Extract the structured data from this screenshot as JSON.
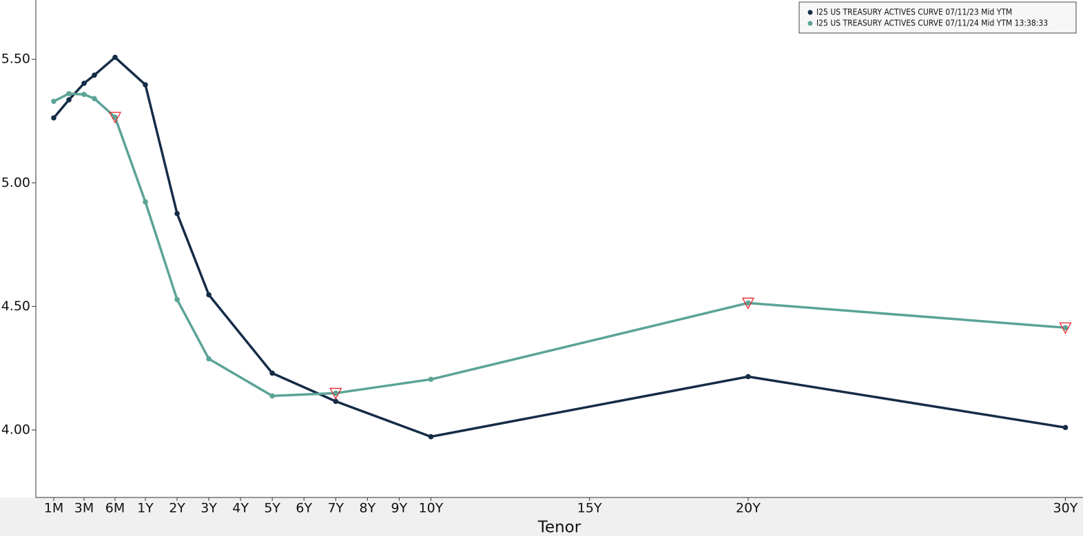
{
  "chart_data": {
    "type": "line",
    "x_label": "Tenor",
    "x": [
      0.0833,
      0.1667,
      0.25,
      0.3333,
      0.5,
      1,
      2,
      3,
      5,
      7,
      10,
      20,
      30
    ],
    "xlim": [
      0,
      30.45
    ],
    "xticks": [
      {
        "value": 0.0833,
        "label": "1M"
      },
      {
        "value": 0.25,
        "label": "3M"
      },
      {
        "value": 0.5,
        "label": "6M"
      },
      {
        "value": 1,
        "label": "1Y"
      },
      {
        "value": 2,
        "label": "2Y"
      },
      {
        "value": 3,
        "label": "3Y"
      },
      {
        "value": 4,
        "label": "4Y"
      },
      {
        "value": 5,
        "label": "5Y"
      },
      {
        "value": 6,
        "label": "6Y"
      },
      {
        "value": 7,
        "label": "7Y"
      },
      {
        "value": 8,
        "label": "8Y"
      },
      {
        "value": 9,
        "label": "9Y"
      },
      {
        "value": 10,
        "label": "10Y"
      },
      {
        "value": 15,
        "label": "15Y"
      },
      {
        "value": 20,
        "label": "20Y"
      },
      {
        "value": 30,
        "label": "30Y"
      }
    ],
    "ylim": [
      3.727,
      5.74
    ],
    "yticks": [
      {
        "value": 4,
        "label": "4.00"
      },
      {
        "value": 4.5,
        "label": "4.50"
      },
      {
        "value": 5,
        "label": "5.00"
      },
      {
        "value": 5.5,
        "label": "5.50"
      }
    ],
    "legend": "upper right",
    "series": [
      {
        "name": "I25 US TREASURY ACTIVES CURVE 07/11/23 Mid YTM",
        "color": "#152c47",
        "values": [
          5.263,
          5.336,
          5.403,
          5.436,
          5.508,
          5.397,
          4.876,
          4.547,
          4.23,
          4.116,
          3.973,
          4.216,
          4.01
        ]
      },
      {
        "name": "I25 US TREASURY ACTIVES CURVE 07/11/24 Mid YTM 13:38:33",
        "color": "#5ba397",
        "values": [
          5.33,
          5.361,
          5.358,
          5.341,
          5.266,
          4.923,
          4.528,
          4.288,
          4.138,
          4.149,
          4.205,
          4.514,
          4.414
        ],
        "flagged_points": [
          4,
          9,
          11,
          12
        ],
        "flag_color": "#e8252b"
      }
    ]
  }
}
